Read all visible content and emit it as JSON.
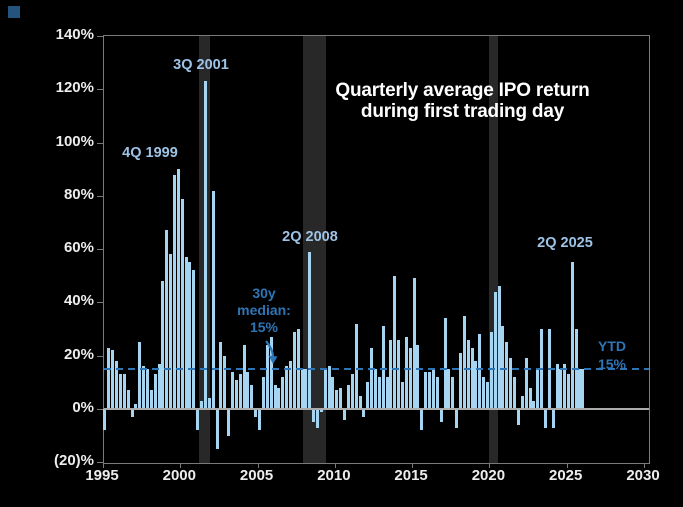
{
  "page": {
    "background": "#000000",
    "corner_mark_color": "#24547E"
  },
  "chart_data": {
    "type": "bar",
    "title_lines": [
      "Quarterly average IPO return",
      "during first trading day"
    ],
    "unit": "%",
    "bar_color": "#A6D5F2",
    "recession_band_color": "#282828",
    "x_axis": {
      "start": 1995,
      "end": 2030,
      "tick_labels": [
        "1995",
        "2000",
        "2005",
        "2010",
        "2015",
        "2020",
        "2025",
        "2030"
      ],
      "grid": false
    },
    "y_axis": {
      "min": -20,
      "max": 140,
      "step": 20,
      "tick_labels_bottom_up": [
        "(20)%",
        "0%",
        "20%",
        "40%",
        "60%",
        "80%",
        "100%",
        "120%",
        "140%"
      ]
    },
    "median_line": {
      "value": 15,
      "color": "#2E75B6",
      "label_lines": [
        "30y",
        "median:",
        "15%"
      ]
    },
    "ytd_callout": {
      "label_lines": [
        "YTD",
        "15%"
      ],
      "value": 15
    },
    "ytd_bar": {
      "label": "YTD",
      "value": 15
    },
    "annotations": [
      {
        "label": "4Q 1999",
        "quarter": "4Q 1999",
        "value": 90
      },
      {
        "label": "3Q 2001",
        "quarter": "3Q 2001",
        "value": 123
      },
      {
        "label": "2Q 2008",
        "quarter": "2Q 2008",
        "value": 59
      },
      {
        "label": "2Q 2025",
        "quarter": "2Q 2025",
        "value": 55
      }
    ],
    "recession_bands": [
      {
        "start_year": 2001.2,
        "end_year": 2001.95
      },
      {
        "start_year": 2007.92,
        "end_year": 2009.42
      },
      {
        "start_year": 2019.98,
        "end_year": 2020.55
      }
    ],
    "series_name": "Quarterly average IPO first-day return (%)",
    "values_by_year": {
      "1995": [
        -8,
        23,
        22,
        18
      ],
      "1996": [
        13,
        13,
        7,
        -3
      ],
      "1997": [
        2,
        25,
        16,
        15
      ],
      "1998": [
        7,
        13,
        17,
        48
      ],
      "1999": [
        67,
        58,
        88,
        90
      ],
      "2000": [
        79,
        57,
        55,
        52
      ],
      "2001": [
        -8,
        3,
        123,
        4
      ],
      "2002": [
        82,
        -15,
        25,
        20
      ],
      "2003": [
        -10,
        14,
        11,
        13
      ],
      "2004": [
        24,
        14,
        9,
        -3
      ],
      "2005": [
        -8,
        12,
        24,
        27
      ],
      "2006": [
        9,
        8,
        12,
        16
      ],
      "2007": [
        18,
        29,
        30,
        15
      ],
      "2008": [
        15,
        59,
        -5,
        -7
      ],
      "2009": [
        -1,
        15,
        16,
        12
      ],
      "2010": [
        7,
        8,
        -4,
        9
      ],
      "2011": [
        13,
        32,
        5,
        -3
      ],
      "2012": [
        10,
        23,
        15,
        12
      ],
      "2013": [
        31,
        12,
        26,
        50
      ],
      "2014": [
        26,
        10,
        27,
        23
      ],
      "2015": [
        49,
        24,
        -8,
        14
      ],
      "2016": [
        14,
        15,
        12,
        -5
      ],
      "2017": [
        34,
        15,
        12,
        -7
      ],
      "2018": [
        21,
        35,
        26,
        23
      ],
      "2019": [
        18,
        28,
        12,
        10
      ],
      "2020": [
        29,
        44,
        46,
        31
      ],
      "2021": [
        25,
        19,
        12,
        -6
      ],
      "2022": [
        5,
        19,
        8,
        3
      ],
      "2023": [
        15,
        30,
        -7,
        30
      ],
      "2024": [
        -7,
        17,
        15,
        17
      ],
      "2025": [
        13,
        55,
        30
      ]
    }
  }
}
